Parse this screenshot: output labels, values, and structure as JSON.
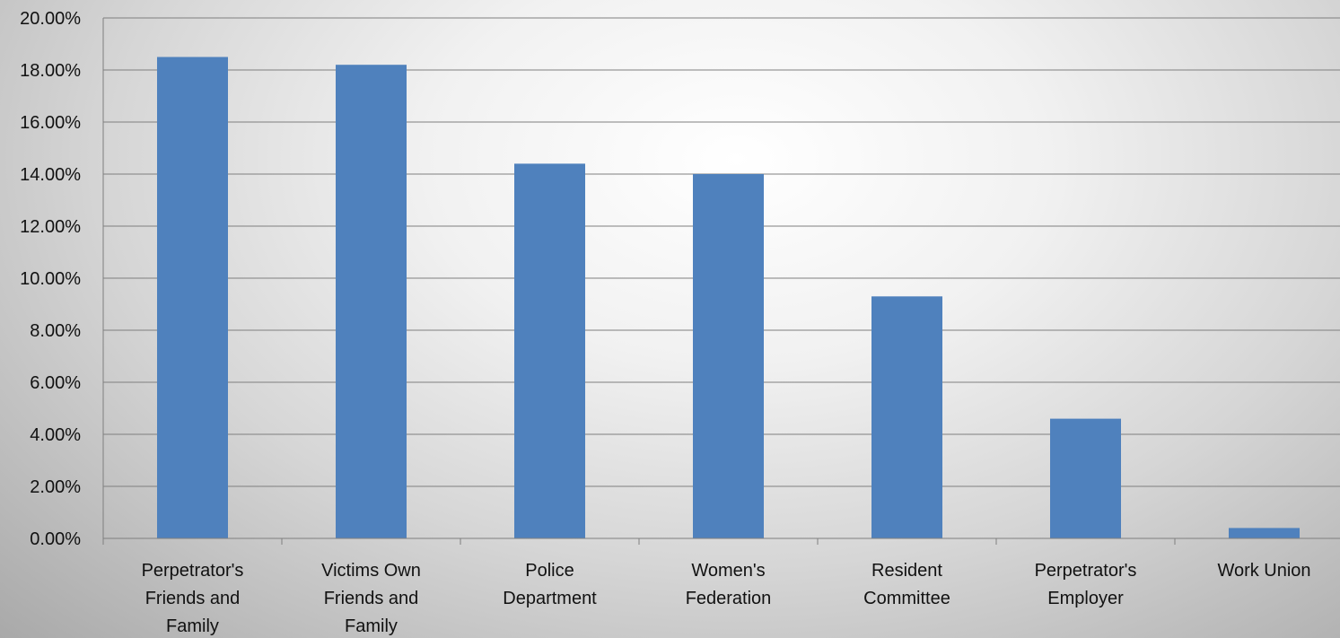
{
  "chart_data": {
    "type": "bar",
    "categories": [
      [
        "Perpetrator's",
        "Friends and",
        "Family"
      ],
      [
        "Victims Own",
        "Friends and",
        "Family"
      ],
      [
        "Police",
        "Department"
      ],
      [
        "Women's",
        "Federation"
      ],
      [
        "Resident",
        "Committee"
      ],
      [
        "Perpetrator's",
        "Employer"
      ],
      [
        "Work Union"
      ]
    ],
    "values": [
      18.5,
      18.2,
      14.4,
      14.0,
      9.3,
      4.6,
      0.4
    ],
    "ylim": [
      0,
      20
    ],
    "yticks": [
      "0.00%",
      "2.00%",
      "4.00%",
      "6.00%",
      "8.00%",
      "10.00%",
      "12.00%",
      "14.00%",
      "16.00%",
      "18.00%",
      "20.00%"
    ],
    "title": "",
    "xlabel": "",
    "ylabel": "",
    "grid": true,
    "bar_color": "#4F81BD",
    "gridline_color": "#7f7f7f"
  }
}
